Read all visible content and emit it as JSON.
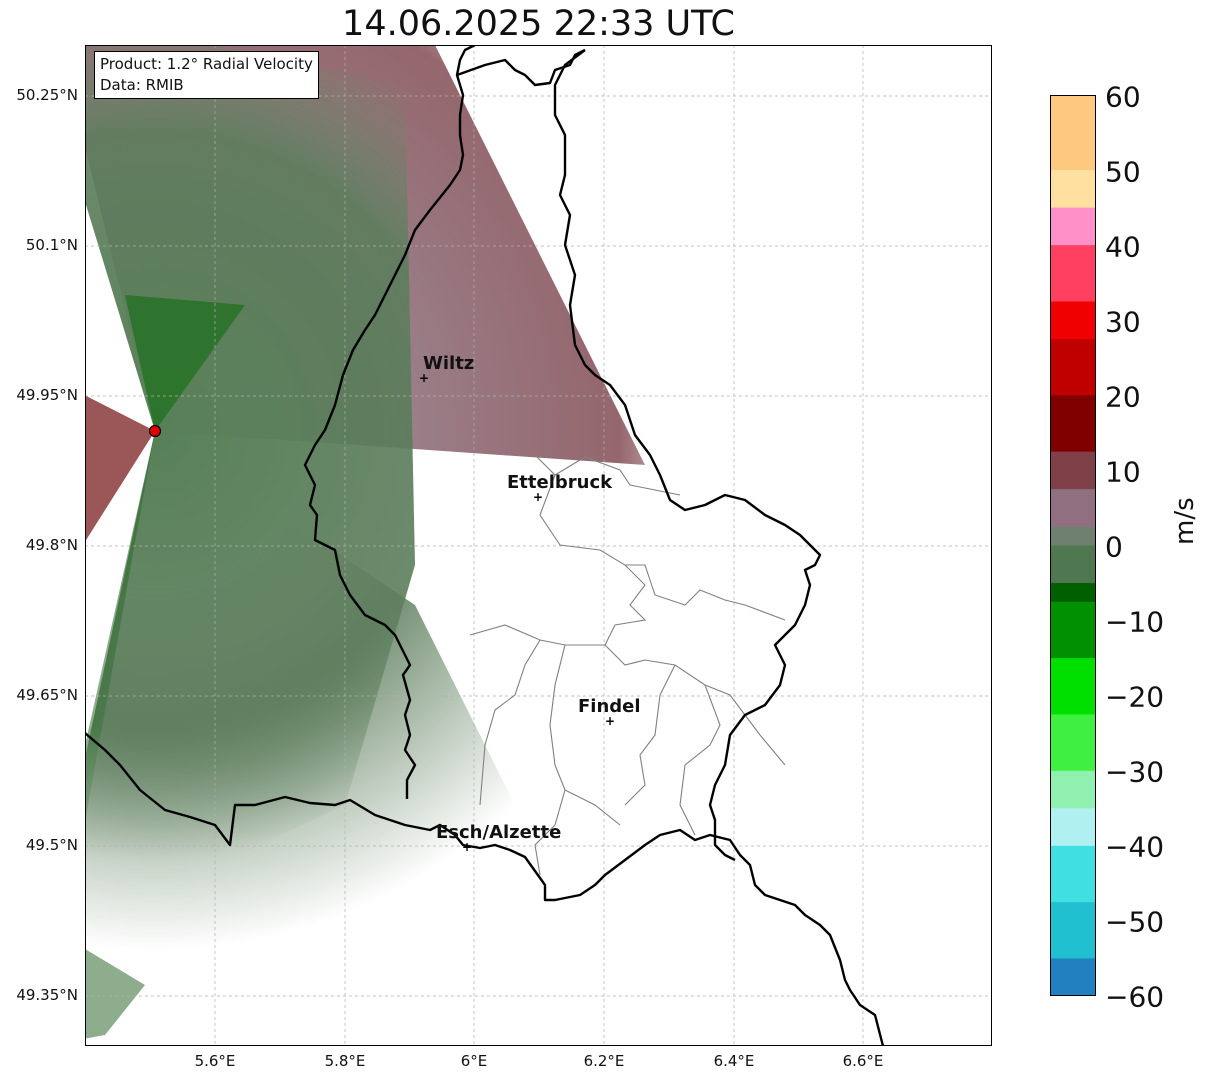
{
  "title": "14.06.2025 22:33 UTC",
  "info": {
    "product": "Product: 1.2° Radial Velocity",
    "data_source": "Data: RMIB"
  },
  "lat_labels": [
    "50.25°N",
    "50.1°N",
    "49.95°N",
    "49.8°N",
    "49.65°N",
    "49.5°N",
    "49.35°N"
  ],
  "lon_labels": [
    "5.6°E",
    "5.8°E",
    "6°E",
    "6.2°E",
    "6.4°E",
    "6.6°E"
  ],
  "cities": [
    {
      "name": "Wiltz",
      "lon": 5.93,
      "lat": 49.966
    },
    {
      "name": "Ettelbruck",
      "lon": 6.1,
      "lat": 49.847
    },
    {
      "name": "Findel",
      "lon": 6.21,
      "lat": 49.623
    },
    {
      "name": "Esch/Alzette",
      "lon": 5.99,
      "lat": 49.5
    }
  ],
  "radar_site": {
    "lon": 5.505,
    "lat": 49.914
  },
  "colorbar": {
    "unit": "m/s",
    "ticks": [
      "60",
      "50",
      "40",
      "30",
      "20",
      "10",
      "0",
      "−10",
      "−20",
      "−30",
      "−40",
      "−50",
      "−60"
    ],
    "range": [
      -60,
      60
    ],
    "colors": {
      "60": "#ffa050",
      "50": "#ffc880",
      "45": "#ffe0a0",
      "40": "#ff90c8",
      "32": "#ff4060",
      "28": "#f00000",
      "20": "#c00000",
      "12": "#800000",
      "8": "#804048",
      "3": "#907080",
      "0": "#708070",
      "-4": "#507850",
      "-8": "#006000",
      "-15": "#009000",
      "-22": "#00e000",
      "-30": "#40f040",
      "-36": "#90f0b0",
      "-40": "#b0f0f0",
      "-48": "#40e0e0",
      "-55": "#20c0d0",
      "-60": "#2080c0"
    }
  },
  "extent": {
    "lon": [
      5.4,
      6.8
    ],
    "lat": [
      49.29,
      50.29
    ]
  }
}
